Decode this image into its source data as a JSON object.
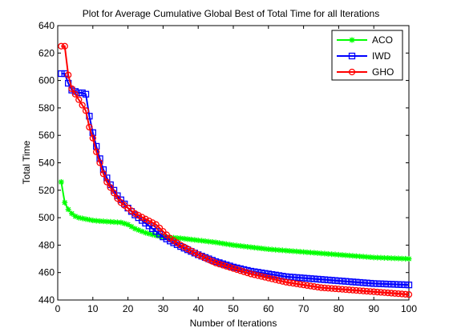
{
  "chart_data": {
    "type": "line",
    "title": "Plot for Average Cumulative Global Best of Total Time for all Iterations",
    "xlabel": "Number of Iterations",
    "ylabel": "Total Time",
    "xlim": [
      0,
      100
    ],
    "ylim": [
      440,
      640
    ],
    "xticks": [
      0,
      10,
      20,
      30,
      40,
      50,
      60,
      70,
      80,
      90,
      100
    ],
    "yticks": [
      440,
      460,
      480,
      500,
      520,
      540,
      560,
      580,
      600,
      620,
      640
    ],
    "xtick_labels": [
      "0",
      "10",
      "20",
      "30",
      "40",
      "50",
      "60",
      "70",
      "80",
      "90",
      "100"
    ],
    "ytick_labels": [
      "440",
      "460",
      "480",
      "500",
      "520",
      "540",
      "560",
      "580",
      "600",
      "620",
      "640"
    ],
    "grid": false,
    "legend_position": "top-right",
    "series": [
      {
        "name": "ACO",
        "color": "#00ff00",
        "marker": "star",
        "x": [
          1,
          2,
          3,
          4,
          5,
          6,
          8,
          10,
          12,
          15,
          18,
          20,
          22,
          25,
          28,
          30,
          35,
          40,
          45,
          50,
          55,
          60,
          65,
          70,
          75,
          80,
          85,
          90,
          95,
          100
        ],
        "y": [
          526,
          511,
          506,
          503,
          501,
          500,
          499,
          498,
          497.5,
          497,
          496.5,
          495,
          492,
          489,
          487,
          486,
          485,
          483.5,
          482,
          480,
          478.5,
          477,
          476,
          475,
          474,
          473,
          472,
          471,
          470.5,
          470
        ]
      },
      {
        "name": "IWD",
        "color": "#0000ff",
        "marker": "square",
        "x": [
          1,
          2,
          3,
          4,
          5,
          6,
          7,
          8,
          9,
          10,
          11,
          12,
          13,
          14,
          15,
          16,
          17,
          18,
          19,
          20,
          22,
          25,
          28,
          30,
          32,
          35,
          40,
          45,
          50,
          55,
          60,
          65,
          70,
          75,
          80,
          85,
          90,
          95,
          100
        ],
        "y": [
          605,
          605,
          598,
          593,
          592,
          591,
          591,
          590,
          574,
          562,
          552,
          543,
          535,
          529,
          524,
          520,
          516,
          513,
          510,
          507,
          502,
          496,
          490,
          486,
          483,
          479,
          473,
          468,
          464,
          461,
          459,
          457,
          456,
          455,
          454,
          453,
          452,
          451.5,
          451
        ]
      },
      {
        "name": "GHO",
        "color": "#ff0000",
        "marker": "circle",
        "x": [
          1,
          2,
          3,
          4,
          5,
          6,
          7,
          8,
          9,
          10,
          11,
          12,
          13,
          14,
          15,
          16,
          17,
          18,
          19,
          20,
          22,
          25,
          28,
          30,
          32,
          35,
          40,
          45,
          50,
          55,
          60,
          65,
          70,
          75,
          80,
          85,
          90,
          95,
          100
        ],
        "y": [
          625,
          625,
          604,
          594,
          590,
          586,
          582,
          578,
          566,
          558,
          548,
          540,
          532,
          526,
          522,
          518,
          514,
          511,
          509,
          507,
          503,
          499,
          495,
          490,
          485,
          480,
          473,
          467,
          463,
          459,
          456,
          453,
          451,
          449,
          448,
          447,
          446,
          445,
          444
        ]
      }
    ]
  }
}
